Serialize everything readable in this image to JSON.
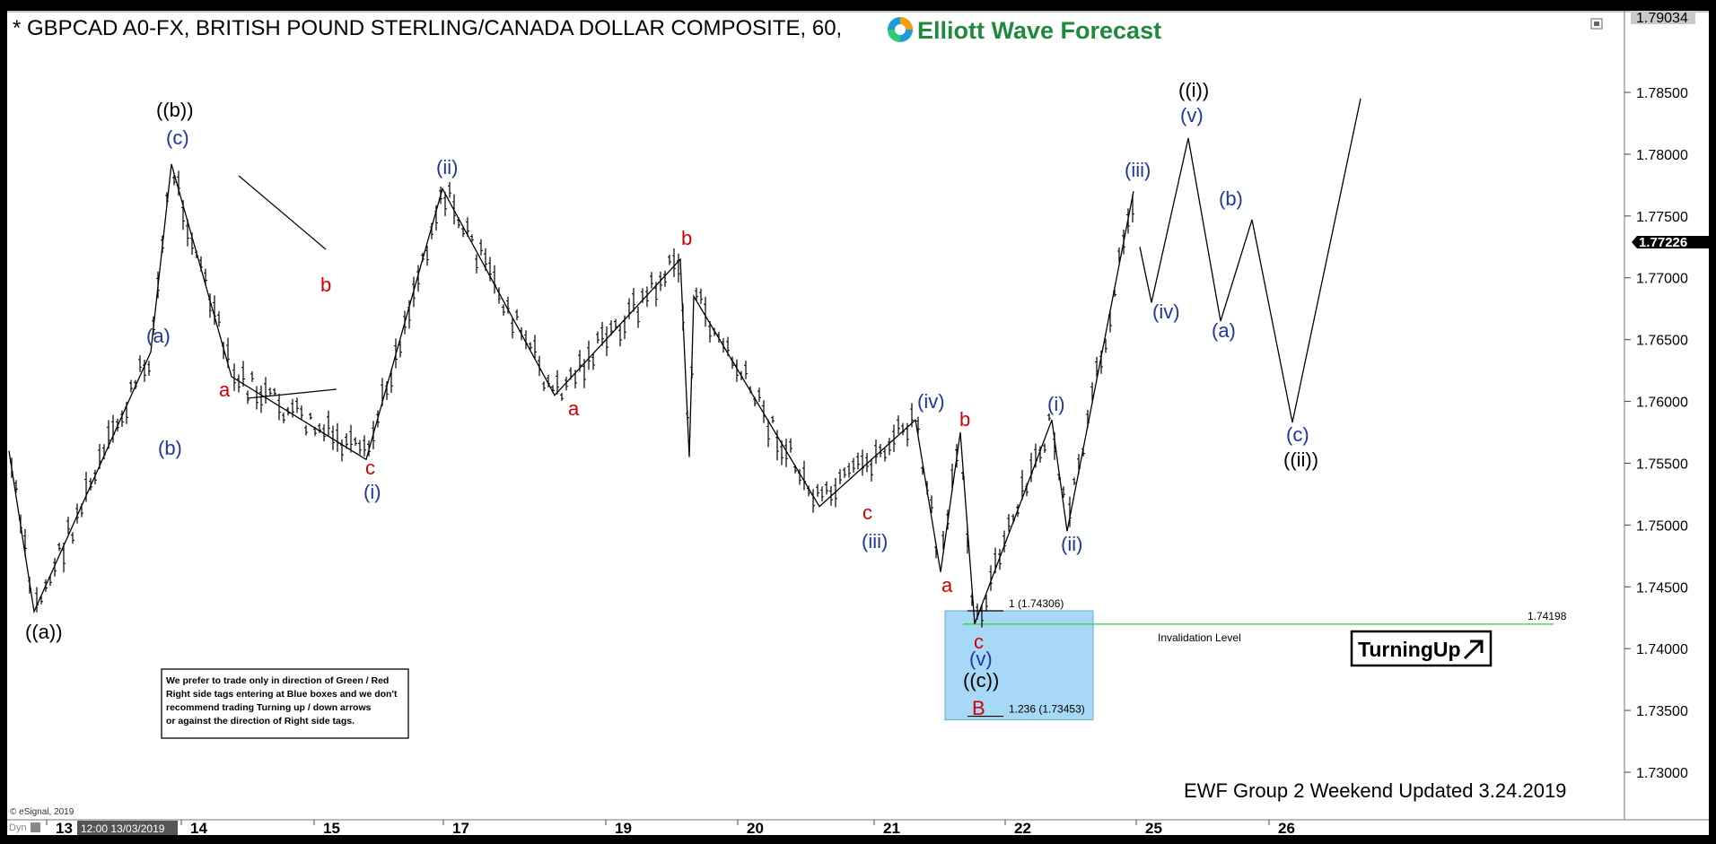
{
  "header": {
    "title": "* GBPCAD A0-FX, BRITISH POUND STERLING/CANADA DOLLAR COMPOSITE, 60,",
    "brand": "Elliott Wave Forecast"
  },
  "colors": {
    "blue_label": "#1f35a3",
    "red_label": "#d40000",
    "black_label": "#000000",
    "invalidation_line": "#33cc33",
    "target_box": "#a7d8f5"
  },
  "chart_data": {
    "type": "line",
    "symbol": "GBPCAD",
    "timeframe": "60",
    "ylim": [
      1.729,
      1.7906
    ],
    "y_ticks": [
      "1.73000",
      "1.73500",
      "1.74000",
      "1.74500",
      "1.75000",
      "1.75500",
      "1.76000",
      "1.76500",
      "1.77000",
      "1.77500",
      "1.78000",
      "1.78500"
    ],
    "y_top_label": "1.79034",
    "current_price": "1.77226",
    "x_ticks": [
      "13",
      "14",
      "15",
      "17",
      "19",
      "20",
      "21",
      "22",
      "25",
      "26"
    ],
    "x_cursor_label": "12:00 13/03/2019",
    "price_path": [
      {
        "day": "12",
        "y": 1.756
      },
      {
        "day": "13",
        "y": 1.743
      },
      {
        "day": "13",
        "y": 1.764
      },
      {
        "day": "14",
        "y": 1.7792
      },
      {
        "day": "14",
        "y": 1.762
      },
      {
        "day": "15",
        "y": 1.7553
      },
      {
        "day": "17",
        "y": 1.7772
      },
      {
        "day": "19",
        "y": 1.7605
      },
      {
        "day": "19",
        "y": 1.7715
      },
      {
        "day": "20",
        "y": 1.7555
      },
      {
        "day": "20",
        "y": 1.7685
      },
      {
        "day": "21",
        "y": 1.7515
      },
      {
        "day": "21",
        "y": 1.7585
      },
      {
        "day": "21",
        "y": 1.7462
      },
      {
        "day": "21",
        "y": 1.7575
      },
      {
        "day": "22",
        "y": 1.742
      },
      {
        "day": "22",
        "y": 1.7585
      },
      {
        "day": "22",
        "y": 1.7495
      },
      {
        "day": "25",
        "y": 1.777
      }
    ],
    "projection": [
      1.7725,
      1.768,
      1.7813,
      1.7665,
      1.7747,
      1.7583,
      1.7845
    ],
    "fib_levels": [
      {
        "label": "1 (1.74306)",
        "value": 1.74306
      },
      {
        "label": "1.236 (1.73453)",
        "value": 1.73453
      }
    ],
    "invalidation": {
      "value": 1.74198,
      "label": "1.74198",
      "text": "Invalidation Level"
    },
    "wave_labels": [
      {
        "text": "((a))",
        "color": "black"
      },
      {
        "text": "((b))",
        "color": "black"
      },
      {
        "text": "(c)",
        "color": "blue"
      },
      {
        "text": "(a)",
        "color": "blue"
      },
      {
        "text": "(b)",
        "color": "blue"
      },
      {
        "text": "a",
        "color": "red"
      },
      {
        "text": "b",
        "color": "red"
      },
      {
        "text": "c",
        "color": "red"
      },
      {
        "text": "(i)",
        "color": "blue"
      },
      {
        "text": "(ii)",
        "color": "blue"
      },
      {
        "text": "a",
        "color": "red"
      },
      {
        "text": "b",
        "color": "red"
      },
      {
        "text": "c",
        "color": "red"
      },
      {
        "text": "(iii)",
        "color": "blue"
      },
      {
        "text": "(iv)",
        "color": "blue"
      },
      {
        "text": "a",
        "color": "red"
      },
      {
        "text": "b",
        "color": "red"
      },
      {
        "text": "c",
        "color": "red"
      },
      {
        "text": "(v)",
        "color": "blue"
      },
      {
        "text": "((c))",
        "color": "black"
      },
      {
        "text": "B",
        "color": "red"
      },
      {
        "text": "(i)",
        "color": "blue"
      },
      {
        "text": "(ii)",
        "color": "blue"
      },
      {
        "text": "(iii)",
        "color": "blue"
      },
      {
        "text": "(iv)",
        "color": "blue"
      },
      {
        "text": "(v)",
        "color": "blue"
      },
      {
        "text": "((i))",
        "color": "black"
      },
      {
        "text": "(a)",
        "color": "blue"
      },
      {
        "text": "(b)",
        "color": "blue"
      },
      {
        "text": "(c)",
        "color": "blue"
      },
      {
        "text": "((ii))",
        "color": "black"
      }
    ]
  },
  "disclaimer": [
    "We prefer to trade only in direction of Green / Red",
    "Right side tags entering at Blue boxes and we don't",
    "recommend trading Turning up / down arrows",
    "or against the direction of Right side tags."
  ],
  "badge": {
    "text": "TurningUp",
    "arrow_icon": "arrow-up-right-icon"
  },
  "footer": {
    "update": "EWF Group 2 Weekend Updated 3.24.2019",
    "copyright": "© eSignal, 2019",
    "dyn": "Dyn"
  }
}
